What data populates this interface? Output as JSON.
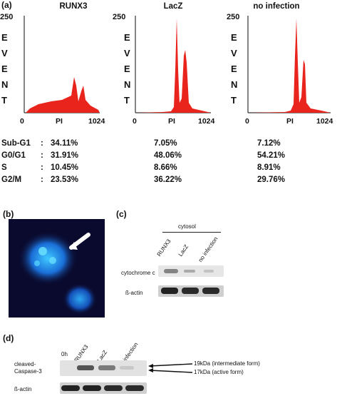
{
  "panels": {
    "a": "(a)",
    "b": "(b)",
    "c": "(c)",
    "d": "(d)"
  },
  "histograms": {
    "y_max_label": "250",
    "y_label": [
      "E",
      "V",
      "E",
      "N",
      "T"
    ],
    "x_labels": {
      "start": "0",
      "mid": "PI",
      "end": "1024"
    },
    "titles": [
      "RUNX3",
      "LacZ",
      "no infection"
    ],
    "color": "#e8241c"
  },
  "stats": {
    "rows": [
      {
        "name": "Sub-G1",
        "sep": ":",
        "values": [
          "34.11%",
          "7.05%",
          "7.12%"
        ]
      },
      {
        "name": "G0/G1",
        "sep": ":",
        "values": [
          "31.91%",
          "48.06%",
          "54.21%"
        ]
      },
      {
        "name": "S",
        "sep": ":",
        "values": [
          "10.45%",
          "8.66%",
          "8.91%"
        ]
      },
      {
        "name": "G2/M",
        "sep": ":",
        "values": [
          "23.53%",
          "36.22%",
          "29.76%"
        ]
      }
    ]
  },
  "blot_c": {
    "header": "cytosol",
    "lanes": [
      "RUNX3",
      "LacZ",
      "no infection"
    ],
    "rows": [
      "cytochrome c",
      "ß-actin"
    ]
  },
  "blot_d": {
    "lanes": [
      "0h",
      "RUNX3",
      "LacZ",
      "no infection"
    ],
    "rows": [
      "cleaved-Caspase-3",
      "ß-actin"
    ],
    "annotations": [
      "19kDa (intermediate form)",
      "17kDa (active form)"
    ]
  },
  "chart_data": {
    "type": "table",
    "columns": [
      "RUNX3",
      "LacZ",
      "no infection"
    ],
    "rows": [
      "Sub-G1",
      "G0/G1",
      "S",
      "G2/M"
    ],
    "values": [
      [
        34.11,
        7.05,
        7.12
      ],
      [
        31.91,
        48.06,
        54.21
      ],
      [
        10.45,
        8.66,
        8.91
      ],
      [
        23.53,
        36.22,
        29.76
      ]
    ],
    "units": "%",
    "histogram_axes": {
      "x_range": [
        0,
        1024
      ],
      "y_range": [
        0,
        250
      ],
      "xlabel": "PI",
      "ylabel": "EVENT"
    }
  }
}
